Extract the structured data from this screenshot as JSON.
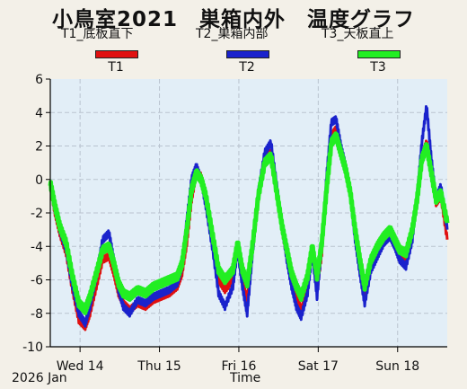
{
  "chart_data": {
    "type": "line",
    "title": "小鳥室2021　巣箱内外　温度グラフ",
    "xlabel": "Time",
    "year_label": "2026 Jan",
    "xlim": [
      0,
      5.0
    ],
    "ylim": [
      -10,
      6
    ],
    "yticks": [
      6,
      4,
      2,
      0,
      -2,
      -4,
      -6,
      -8,
      -10
    ],
    "xticks": [
      {
        "x": 0.375,
        "label": "Wed 14"
      },
      {
        "x": 1.375,
        "label": "Thu 15"
      },
      {
        "x": 2.375,
        "label": "Fri 16"
      },
      {
        "x": 3.375,
        "label": "Sat 17"
      },
      {
        "x": 4.375,
        "label": "Sun 18"
      }
    ],
    "grid": true,
    "legend": [
      {
        "name": "T1_底板直下",
        "code": "T1",
        "color": "#e01010"
      },
      {
        "name": "T2_巣箱内部",
        "code": "T2",
        "color": "#1a22cc"
      },
      {
        "name": "T3_天板直上",
        "code": "T3",
        "color": "#22ee22"
      }
    ],
    "series": [
      {
        "name": "T1",
        "color": "#e01010",
        "x": [
          0,
          0.06,
          0.12,
          0.2,
          0.28,
          0.36,
          0.44,
          0.5,
          0.58,
          0.66,
          0.74,
          0.8,
          0.86,
          0.92,
          1.0,
          1.1,
          1.2,
          1.3,
          1.4,
          1.5,
          1.6,
          1.66,
          1.72,
          1.78,
          1.84,
          1.9,
          1.96,
          2.04,
          2.12,
          2.2,
          2.3,
          2.36,
          2.42,
          2.48,
          2.54,
          2.62,
          2.7,
          2.78,
          2.86,
          2.92,
          2.98,
          3.04,
          3.1,
          3.16,
          3.24,
          3.3,
          3.36,
          3.42,
          3.48,
          3.54,
          3.6,
          3.66,
          3.72,
          3.78,
          3.84,
          3.9,
          3.96,
          4.04,
          4.12,
          4.2,
          4.28,
          4.34,
          4.4,
          4.48,
          4.56,
          4.62,
          4.68,
          4.74,
          4.8,
          4.86,
          4.92,
          5.0
        ],
        "y": [
          -0.4,
          -2.0,
          -3.2,
          -4.4,
          -6.6,
          -8.4,
          -8.8,
          -8.0,
          -6.4,
          -4.8,
          -4.6,
          -5.6,
          -6.8,
          -7.4,
          -7.8,
          -7.4,
          -7.6,
          -7.2,
          -7.0,
          -6.8,
          -6.4,
          -5.6,
          -3.8,
          -1.2,
          0.4,
          0.2,
          -1.2,
          -3.6,
          -6.0,
          -6.6,
          -6.0,
          -4.0,
          -6.0,
          -7.2,
          -4.6,
          -1.2,
          1.2,
          1.6,
          -1.0,
          -3.0,
          -4.6,
          -6.0,
          -7.0,
          -7.8,
          -6.4,
          -4.2,
          -6.6,
          -4.4,
          -0.6,
          2.6,
          3.0,
          1.8,
          0.8,
          -0.8,
          -3.2,
          -5.4,
          -7.0,
          -5.2,
          -4.4,
          -3.6,
          -3.2,
          -3.8,
          -4.6,
          -4.8,
          -3.2,
          -1.2,
          1.4,
          2.2,
          0.6,
          -1.4,
          -1.0,
          -3.6
        ]
      },
      {
        "name": "T2",
        "color": "#1a22cc",
        "x": [
          0,
          0.06,
          0.12,
          0.2,
          0.28,
          0.36,
          0.44,
          0.5,
          0.58,
          0.66,
          0.74,
          0.8,
          0.86,
          0.92,
          1.0,
          1.1,
          1.2,
          1.3,
          1.4,
          1.5,
          1.6,
          1.66,
          1.72,
          1.78,
          1.84,
          1.9,
          1.96,
          2.04,
          2.12,
          2.2,
          2.3,
          2.36,
          2.42,
          2.48,
          2.54,
          2.62,
          2.7,
          2.78,
          2.86,
          2.92,
          2.98,
          3.04,
          3.1,
          3.16,
          3.24,
          3.3,
          3.36,
          3.42,
          3.48,
          3.54,
          3.6,
          3.66,
          3.72,
          3.78,
          3.84,
          3.9,
          3.96,
          4.04,
          4.12,
          4.2,
          4.28,
          4.34,
          4.4,
          4.48,
          4.56,
          4.62,
          4.68,
          4.74,
          4.8,
          4.86,
          4.92,
          5.0
        ],
        "y": [
          -0.2,
          -1.8,
          -3.0,
          -4.2,
          -6.4,
          -8.0,
          -8.6,
          -7.6,
          -5.8,
          -3.6,
          -3.2,
          -4.8,
          -6.6,
          -7.6,
          -8.0,
          -7.2,
          -7.4,
          -7.0,
          -6.8,
          -6.6,
          -6.2,
          -5.2,
          -2.4,
          0.0,
          0.8,
          0.0,
          -1.6,
          -4.0,
          -6.8,
          -7.6,
          -6.4,
          -4.2,
          -6.4,
          -8.0,
          -4.8,
          -0.8,
          1.6,
          2.2,
          -0.6,
          -2.8,
          -4.8,
          -6.4,
          -7.6,
          -8.2,
          -6.8,
          -4.4,
          -7.0,
          -4.0,
          0.2,
          3.4,
          3.6,
          2.0,
          0.8,
          -1.0,
          -3.6,
          -5.6,
          -7.4,
          -5.4,
          -4.6,
          -3.8,
          -3.4,
          -4.0,
          -4.8,
          -5.2,
          -3.6,
          -1.0,
          2.2,
          4.4,
          1.2,
          -1.2,
          -0.4,
          -3.0
        ]
      },
      {
        "name": "T3",
        "color": "#22ee22",
        "x": [
          0,
          0.06,
          0.12,
          0.2,
          0.28,
          0.36,
          0.44,
          0.5,
          0.58,
          0.66,
          0.74,
          0.8,
          0.86,
          0.92,
          1.0,
          1.1,
          1.2,
          1.3,
          1.4,
          1.5,
          1.6,
          1.66,
          1.72,
          1.78,
          1.84,
          1.9,
          1.96,
          2.04,
          2.12,
          2.2,
          2.3,
          2.36,
          2.42,
          2.48,
          2.54,
          2.62,
          2.7,
          2.78,
          2.86,
          2.92,
          2.98,
          3.04,
          3.1,
          3.16,
          3.24,
          3.3,
          3.36,
          3.42,
          3.48,
          3.54,
          3.6,
          3.66,
          3.72,
          3.78,
          3.84,
          3.9,
          3.96,
          4.04,
          4.12,
          4.2,
          4.28,
          4.34,
          4.4,
          4.48,
          4.56,
          4.62,
          4.68,
          4.74,
          4.8,
          4.86,
          4.92,
          5.0
        ],
        "y": [
          -0.2,
          -1.6,
          -2.8,
          -3.8,
          -5.8,
          -7.4,
          -7.8,
          -7.0,
          -5.6,
          -4.2,
          -4.0,
          -5.0,
          -6.2,
          -6.8,
          -7.0,
          -6.6,
          -6.8,
          -6.4,
          -6.2,
          -6.0,
          -5.8,
          -5.0,
          -3.0,
          -0.6,
          0.4,
          0.0,
          -1.0,
          -3.2,
          -5.4,
          -6.0,
          -5.4,
          -3.8,
          -5.4,
          -6.2,
          -4.2,
          -1.0,
          1.0,
          1.4,
          -1.0,
          -2.8,
          -4.2,
          -5.6,
          -6.4,
          -7.0,
          -5.8,
          -4.0,
          -5.8,
          -3.8,
          -0.6,
          2.2,
          2.6,
          1.6,
          0.6,
          -0.8,
          -3.0,
          -4.8,
          -6.4,
          -4.8,
          -4.0,
          -3.4,
          -3.0,
          -3.6,
          -4.2,
          -4.4,
          -3.0,
          -1.2,
          1.2,
          2.0,
          0.4,
          -1.2,
          -0.8,
          -2.6
        ]
      }
    ]
  }
}
